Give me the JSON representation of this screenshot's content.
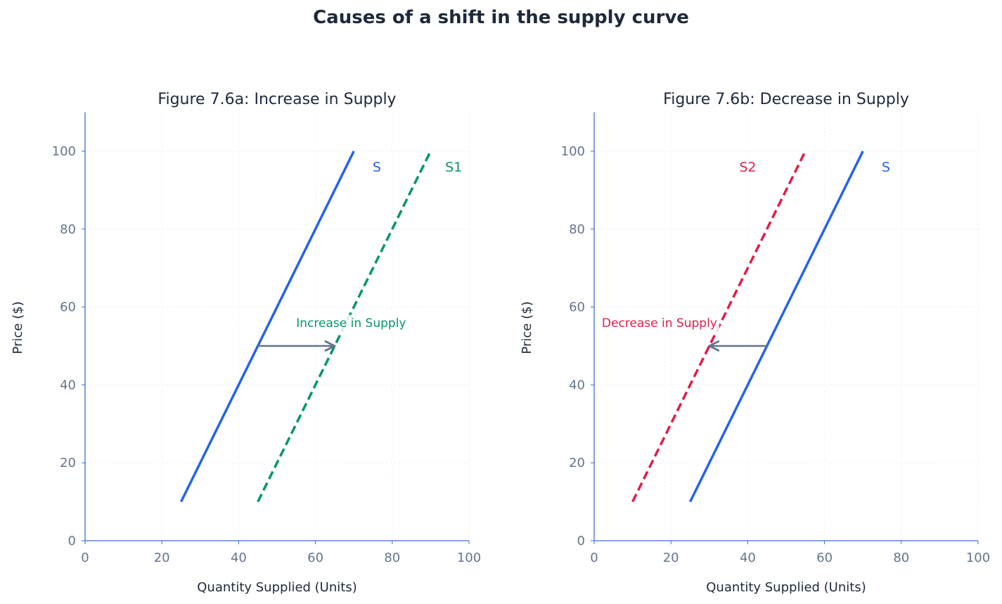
{
  "title": "Causes of a shift in the supply curve",
  "colors": {
    "S": "#2563eb",
    "S1": "#059669",
    "S2": "#e11d48",
    "arrow": "#64748b",
    "axis": "#3b6fd8",
    "tick": "#64748b",
    "text": "#1e293b"
  },
  "chart_data": [
    {
      "type": "line",
      "title": "Figure 7.6a: Increase in Supply",
      "xlabel": "Quantity Supplied (Units)",
      "ylabel": "Price ($)",
      "xlim": [
        0,
        100
      ],
      "ylim": [
        0,
        110
      ],
      "xticks": [
        0,
        20,
        40,
        60,
        80,
        100
      ],
      "yticks": [
        0,
        20,
        40,
        60,
        80,
        100
      ],
      "grid": true,
      "series": [
        {
          "name": "S",
          "x": [
            25,
            70
          ],
          "y": [
            10,
            100
          ],
          "color": "#2563eb",
          "style": "solid"
        },
        {
          "name": "S1",
          "x": [
            45,
            90
          ],
          "y": [
            10,
            100
          ],
          "color": "#059669",
          "style": "dashed"
        }
      ],
      "labels": [
        {
          "text": "S",
          "x": 76,
          "y": 96,
          "color": "#2563eb"
        },
        {
          "text": "S1",
          "x": 96,
          "y": 96,
          "color": "#059669"
        }
      ],
      "annotation": {
        "text": "Increase in Supply",
        "x": 55,
        "y": 56,
        "color": "#059669",
        "arrow_from": [
          45,
          50
        ],
        "arrow_to": [
          65,
          50
        ]
      }
    },
    {
      "type": "line",
      "title": "Figure 7.6b: Decrease in Supply",
      "xlabel": "Quantity Supplied (Units)",
      "ylabel": "Price ($)",
      "xlim": [
        0,
        100
      ],
      "ylim": [
        0,
        110
      ],
      "xticks": [
        0,
        20,
        40,
        60,
        80,
        100
      ],
      "yticks": [
        0,
        20,
        40,
        60,
        80,
        100
      ],
      "grid": true,
      "series": [
        {
          "name": "S",
          "x": [
            25,
            70
          ],
          "y": [
            10,
            100
          ],
          "color": "#2563eb",
          "style": "solid"
        },
        {
          "name": "S2",
          "x": [
            10,
            55
          ],
          "y": [
            10,
            100
          ],
          "color": "#e11d48",
          "style": "dashed"
        }
      ],
      "labels": [
        {
          "text": "S2",
          "x": 40,
          "y": 96,
          "color": "#e11d48"
        },
        {
          "text": "S",
          "x": 76,
          "y": 96,
          "color": "#2563eb"
        }
      ],
      "annotation": {
        "text": "Decrease in Supply",
        "x": 2,
        "y": 56,
        "color": "#e11d48",
        "arrow_from": [
          45,
          50
        ],
        "arrow_to": [
          30,
          50
        ]
      }
    }
  ]
}
